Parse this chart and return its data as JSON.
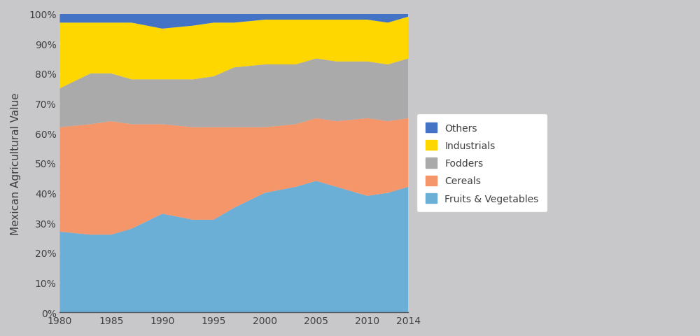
{
  "years": [
    1980,
    1983,
    1985,
    1987,
    1990,
    1993,
    1995,
    1997,
    2000,
    2003,
    2005,
    2007,
    2010,
    2012,
    2014
  ],
  "fruits_vegetables": [
    27,
    26,
    26,
    28,
    33,
    31,
    31,
    35,
    40,
    42,
    44,
    42,
    39,
    40,
    42
  ],
  "cereals": [
    35,
    37,
    38,
    35,
    30,
    31,
    31,
    27,
    22,
    21,
    21,
    22,
    26,
    24,
    23
  ],
  "fodders": [
    13,
    17,
    16,
    15,
    15,
    16,
    17,
    20,
    21,
    20,
    20,
    20,
    19,
    19,
    20
  ],
  "industrials": [
    22,
    17,
    17,
    19,
    17,
    18,
    18,
    15,
    15,
    15,
    13,
    14,
    14,
    14,
    14
  ],
  "others": [
    3,
    3,
    3,
    3,
    5,
    4,
    3,
    3,
    2,
    2,
    2,
    2,
    2,
    3,
    1
  ],
  "colors": {
    "fruits_vegetables": "#6BAED6",
    "cereals": "#F4956A",
    "fodders": "#AAAAAA",
    "industrials": "#FFD700",
    "others": "#4472C4"
  },
  "legend_order": [
    "Others",
    "Industrials",
    "Fodders",
    "Cereals",
    "Fruits & Vegetables"
  ],
  "legend_colors_order": [
    "others",
    "industrials",
    "fodders",
    "cereals",
    "fruits_vegetables"
  ],
  "ylabel": "Mexican Agricultural Value",
  "fig_bg": "#C8C8CB",
  "ax_bg": "#CDCDCD",
  "grid_color": "#FFFFFF",
  "tick_color": "#404040",
  "spine_color": "#555555"
}
